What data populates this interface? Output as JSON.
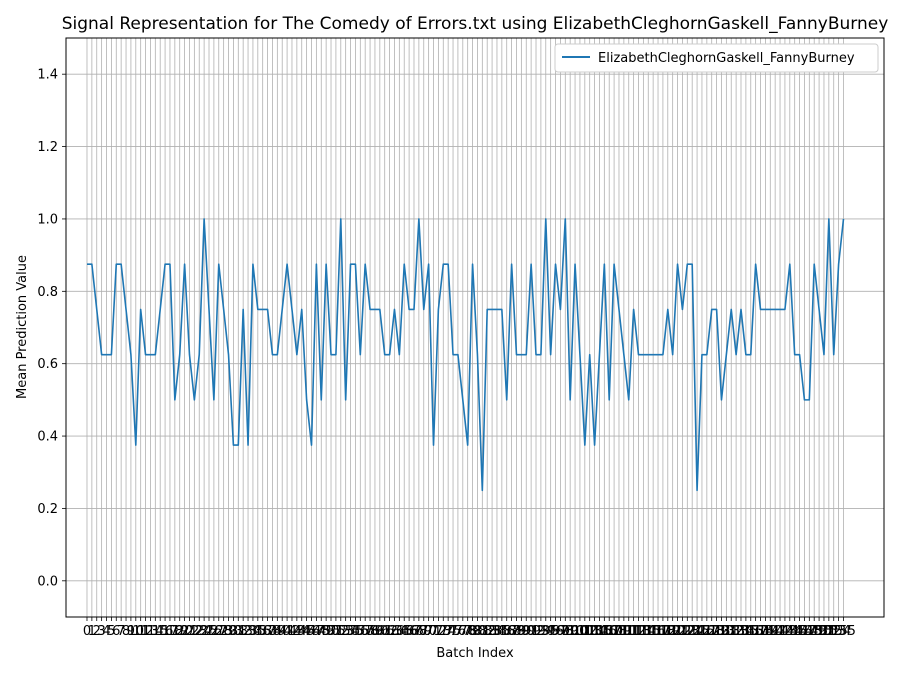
{
  "chart_data": {
    "type": "line",
    "title": "Signal Representation for The Comedy of Errors.txt using ElizabethCleghornGaskell_FannyBurney",
    "xlabel": "Batch Index",
    "ylabel": "Mean Prediction Value",
    "ylim": [
      -0.1,
      1.5
    ],
    "yticks": [
      "0.0",
      "0.2",
      "0.4",
      "0.6",
      "0.8",
      "1.0",
      "1.2",
      "1.4"
    ],
    "xlim": [
      -4.3,
      163.3
    ],
    "grid": true,
    "legend_position": "top-right",
    "line_color": "#1f77b4",
    "grid_color": "#b0b0b0",
    "series": [
      {
        "name": "ElizabethCleghornGaskell_FannyBurney",
        "values": [
          0.875,
          0.875,
          0.75,
          0.625,
          0.625,
          0.625,
          0.875,
          0.875,
          0.75,
          0.625,
          0.375,
          0.75,
          0.625,
          0.625,
          0.625,
          0.75,
          0.875,
          0.875,
          0.5,
          0.625,
          0.875,
          0.625,
          0.5,
          0.625,
          1.0,
          0.75,
          0.5,
          0.875,
          0.75,
          0.625,
          0.375,
          0.375,
          0.75,
          0.375,
          0.875,
          0.75,
          0.75,
          0.75,
          0.625,
          0.625,
          0.75,
          0.875,
          0.75,
          0.625,
          0.75,
          0.5,
          0.375,
          0.875,
          0.5,
          0.875,
          0.625,
          0.625,
          1.0,
          0.5,
          0.875,
          0.875,
          0.625,
          0.875,
          0.75,
          0.75,
          0.75,
          0.625,
          0.625,
          0.75,
          0.625,
          0.875,
          0.75,
          0.75,
          1.0,
          0.75,
          0.875,
          0.375,
          0.75,
          0.875,
          0.875,
          0.625,
          0.625,
          0.5,
          0.375,
          0.875,
          0.625,
          0.25,
          0.75,
          0.75,
          0.75,
          0.75,
          0.5,
          0.875,
          0.625,
          0.625,
          0.625,
          0.875,
          0.625,
          0.625,
          1.0,
          0.625,
          0.875,
          0.75,
          1.0,
          0.5,
          0.875,
          0.625,
          0.375,
          0.625,
          0.375,
          0.625,
          0.875,
          0.5,
          0.875,
          0.75,
          0.625,
          0.5,
          0.75,
          0.625,
          0.625,
          0.625,
          0.625,
          0.625,
          0.625,
          0.75,
          0.625,
          0.875,
          0.75,
          0.875,
          0.875,
          0.25,
          0.625,
          0.625,
          0.75,
          0.75,
          0.5,
          0.625,
          0.75,
          0.625,
          0.75,
          0.625,
          0.625,
          0.875,
          0.75,
          0.75,
          0.75,
          0.75,
          0.75,
          0.75,
          0.875,
          0.625,
          0.625,
          0.5,
          0.5,
          0.875,
          0.75,
          0.625,
          1.0,
          0.625,
          0.875,
          1.0
        ]
      }
    ]
  }
}
